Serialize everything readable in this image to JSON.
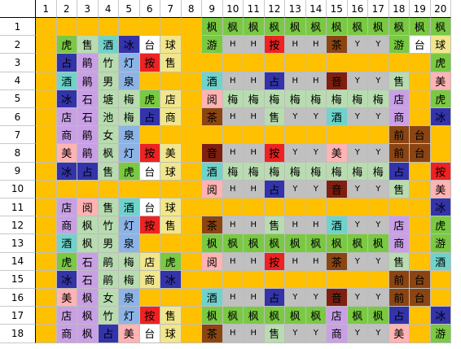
{
  "colors": {
    "O": "#ffc000",
    "W": "#ffffff",
    "G": "#7ac943",
    "B": "#3333aa",
    "C": "#6fd3cc",
    "L": "#c9a0e6",
    "R": "#ee2222",
    "N": "#8b4513",
    "D": "#7f1f0f",
    "S": "#c0c0c0",
    "P": "#ffb3b3",
    "Y": "#f2e68c",
    "K": "#b8dcb0",
    "M": "#8cb4e6",
    "A": "#e0e0e0"
  },
  "column_headers": [
    "1",
    "2",
    "3",
    "4",
    "5",
    "6",
    "7",
    "8",
    "9",
    "10",
    "11",
    "12",
    "13",
    "14",
    "15",
    "16",
    "17",
    "18",
    "19",
    "20"
  ],
  "rows": [
    {
      "label": "1",
      "cells": [
        [
          "",
          "O"
        ],
        [
          "",
          "O"
        ],
        [
          "",
          "O"
        ],
        [
          "",
          "O"
        ],
        [
          "",
          "O"
        ],
        [
          "",
          "O"
        ],
        [
          "",
          "O"
        ],
        [
          "",
          "O"
        ],
        [
          "枫",
          "G"
        ],
        [
          "枫",
          "G"
        ],
        [
          "枫",
          "G"
        ],
        [
          "枫",
          "G"
        ],
        [
          "枫",
          "G"
        ],
        [
          "枫",
          "G"
        ],
        [
          "枫",
          "G"
        ],
        [
          "枫",
          "G"
        ],
        [
          "枫",
          "G"
        ],
        [
          "枫",
          "G"
        ],
        [
          "枫",
          "G"
        ],
        [
          "枫",
          "G"
        ]
      ]
    },
    {
      "label": "2",
      "cells": [
        [
          "",
          "O"
        ],
        [
          "虎",
          "G"
        ],
        [
          "售",
          "K"
        ],
        [
          "酒",
          "C"
        ],
        [
          "冰",
          "B"
        ],
        [
          "台",
          "W"
        ],
        [
          "球",
          "Y"
        ],
        [
          "",
          "O"
        ],
        [
          "游",
          "G"
        ],
        [
          "H",
          "S"
        ],
        [
          "H",
          "S"
        ],
        [
          "按",
          "R"
        ],
        [
          "H",
          "S"
        ],
        [
          "H",
          "S"
        ],
        [
          "茶",
          "N"
        ],
        [
          "Y",
          "S"
        ],
        [
          "Y",
          "S"
        ],
        [
          "游",
          "G"
        ],
        [
          "台",
          "W"
        ],
        [
          "球",
          "Y"
        ]
      ]
    },
    {
      "label": "3",
      "cells": [
        [
          "",
          "O"
        ],
        [
          "占",
          "B"
        ],
        [
          "鹃",
          "L"
        ],
        [
          "竹",
          "K"
        ],
        [
          "灯",
          "M"
        ],
        [
          "按",
          "R"
        ],
        [
          "售",
          "Y"
        ],
        [
          "",
          "O"
        ],
        [
          "",
          "O"
        ],
        [
          "",
          "O"
        ],
        [
          "",
          "O"
        ],
        [
          "",
          "O"
        ],
        [
          "",
          "O"
        ],
        [
          "",
          "O"
        ],
        [
          "",
          "O"
        ],
        [
          "",
          "O"
        ],
        [
          "",
          "O"
        ],
        [
          "",
          "O"
        ],
        [
          "",
          "O"
        ],
        [
          "虎",
          "G"
        ]
      ]
    },
    {
      "label": "4",
      "cells": [
        [
          "",
          "O"
        ],
        [
          "酒",
          "C"
        ],
        [
          "鹃",
          "L"
        ],
        [
          "男",
          "K"
        ],
        [
          "泉",
          "M"
        ],
        [
          "",
          "O"
        ],
        [
          "",
          "O"
        ],
        [
          "",
          "O"
        ],
        [
          "酒",
          "C"
        ],
        [
          "H",
          "S"
        ],
        [
          "H",
          "S"
        ],
        [
          "占",
          "B"
        ],
        [
          "H",
          "S"
        ],
        [
          "H",
          "S"
        ],
        [
          "音",
          "D"
        ],
        [
          "Y",
          "S"
        ],
        [
          "Y",
          "S"
        ],
        [
          "售",
          "K"
        ],
        [
          "",
          "O"
        ],
        [
          "美",
          "P"
        ]
      ]
    },
    {
      "label": "5",
      "cells": [
        [
          "",
          "O"
        ],
        [
          "冰",
          "B"
        ],
        [
          "石",
          "L"
        ],
        [
          "塘",
          "K"
        ],
        [
          "梅",
          "K"
        ],
        [
          "虎",
          "G"
        ],
        [
          "店",
          "Y"
        ],
        [
          "",
          "O"
        ],
        [
          "阅",
          "P"
        ],
        [
          "梅",
          "K"
        ],
        [
          "梅",
          "K"
        ],
        [
          "梅",
          "K"
        ],
        [
          "梅",
          "K"
        ],
        [
          "梅",
          "K"
        ],
        [
          "梅",
          "K"
        ],
        [
          "梅",
          "K"
        ],
        [
          "梅",
          "K"
        ],
        [
          "店",
          "L"
        ],
        [
          "",
          "O"
        ],
        [
          "虎",
          "G"
        ]
      ]
    },
    {
      "label": "6",
      "cells": [
        [
          "",
          "O"
        ],
        [
          "店",
          "L"
        ],
        [
          "石",
          "L"
        ],
        [
          "池",
          "K"
        ],
        [
          "梅",
          "K"
        ],
        [
          "占",
          "B"
        ],
        [
          "商",
          "Y"
        ],
        [
          "",
          "O"
        ],
        [
          "茶",
          "N"
        ],
        [
          "H",
          "S"
        ],
        [
          "H",
          "S"
        ],
        [
          "售",
          "K"
        ],
        [
          "Y",
          "S"
        ],
        [
          "Y",
          "S"
        ],
        [
          "酒",
          "C"
        ],
        [
          "Y",
          "S"
        ],
        [
          "Y",
          "S"
        ],
        [
          "商",
          "L"
        ],
        [
          "",
          "O"
        ],
        [
          "冰",
          "B"
        ]
      ]
    },
    {
      "label": "7",
      "cells": [
        [
          "",
          "O"
        ],
        [
          "商",
          "L"
        ],
        [
          "鹃",
          "L"
        ],
        [
          "女",
          "K"
        ],
        [
          "泉",
          "M"
        ],
        [
          "",
          "O"
        ],
        [
          "",
          "O"
        ],
        [
          "",
          "O"
        ],
        [
          "",
          "O"
        ],
        [
          "",
          "O"
        ],
        [
          "",
          "O"
        ],
        [
          "",
          "O"
        ],
        [
          "",
          "O"
        ],
        [
          "",
          "O"
        ],
        [
          "",
          "O"
        ],
        [
          "",
          "O"
        ],
        [
          "",
          "O"
        ],
        [
          "前",
          "N"
        ],
        [
          "台",
          "N"
        ],
        [
          "",
          "O"
        ]
      ]
    },
    {
      "label": "8",
      "cells": [
        [
          "",
          "O"
        ],
        [
          "美",
          "P"
        ],
        [
          "鹃",
          "L"
        ],
        [
          "枫",
          "K"
        ],
        [
          "灯",
          "M"
        ],
        [
          "按",
          "R"
        ],
        [
          "美",
          "Y"
        ],
        [
          "",
          "O"
        ],
        [
          "音",
          "D"
        ],
        [
          "H",
          "S"
        ],
        [
          "H",
          "S"
        ],
        [
          "按",
          "R"
        ],
        [
          "Y",
          "S"
        ],
        [
          "Y",
          "S"
        ],
        [
          "美",
          "P"
        ],
        [
          "Y",
          "S"
        ],
        [
          "Y",
          "S"
        ],
        [
          "前",
          "N"
        ],
        [
          "台",
          "N"
        ],
        [
          "",
          "O"
        ]
      ]
    },
    {
      "label": "9",
      "cells": [
        [
          "",
          "O"
        ],
        [
          "冰",
          "B"
        ],
        [
          "占",
          "B"
        ],
        [
          "售",
          "K"
        ],
        [
          "虎",
          "G"
        ],
        [
          "台",
          "W"
        ],
        [
          "球",
          "Y"
        ],
        [
          "",
          "O"
        ],
        [
          "酒",
          "C"
        ],
        [
          "梅",
          "K"
        ],
        [
          "梅",
          "K"
        ],
        [
          "梅",
          "K"
        ],
        [
          "梅",
          "K"
        ],
        [
          "梅",
          "K"
        ],
        [
          "梅",
          "K"
        ],
        [
          "梅",
          "K"
        ],
        [
          "梅",
          "K"
        ],
        [
          "占",
          "B"
        ],
        [
          "",
          "O"
        ],
        [
          "按",
          "R"
        ]
      ]
    },
    {
      "label": "10",
      "cells": [
        [
          "",
          "O"
        ],
        [
          "",
          "O"
        ],
        [
          "",
          "O"
        ],
        [
          "",
          "O"
        ],
        [
          "",
          "O"
        ],
        [
          "",
          "O"
        ],
        [
          "",
          "O"
        ],
        [
          "",
          "O"
        ],
        [
          "阅",
          "P"
        ],
        [
          "H",
          "S"
        ],
        [
          "H",
          "S"
        ],
        [
          "占",
          "B"
        ],
        [
          "Y",
          "S"
        ],
        [
          "Y",
          "S"
        ],
        [
          "音",
          "D"
        ],
        [
          "Y",
          "S"
        ],
        [
          "Y",
          "S"
        ],
        [
          "售",
          "K"
        ],
        [
          "",
          "O"
        ],
        [
          "美",
          "P"
        ]
      ]
    },
    {
      "label": "11",
      "cells": [
        [
          "",
          "O"
        ],
        [
          "店",
          "L"
        ],
        [
          "阅",
          "P"
        ],
        [
          "售",
          "K"
        ],
        [
          "酒",
          "C"
        ],
        [
          "台",
          "W"
        ],
        [
          "球",
          "Y"
        ],
        [
          "",
          "O"
        ],
        [
          "",
          "O"
        ],
        [
          "",
          "O"
        ],
        [
          "",
          "O"
        ],
        [
          "",
          "O"
        ],
        [
          "",
          "O"
        ],
        [
          "",
          "O"
        ],
        [
          "",
          "O"
        ],
        [
          "",
          "O"
        ],
        [
          "",
          "O"
        ],
        [
          "",
          "O"
        ],
        [
          "",
          "O"
        ],
        [
          "冰",
          "B"
        ]
      ]
    },
    {
      "label": "12",
      "cells": [
        [
          "",
          "O"
        ],
        [
          "商",
          "L"
        ],
        [
          "枫",
          "K"
        ],
        [
          "竹",
          "K"
        ],
        [
          "灯",
          "M"
        ],
        [
          "按",
          "R"
        ],
        [
          "售",
          "Y"
        ],
        [
          "",
          "O"
        ],
        [
          "茶",
          "N"
        ],
        [
          "H",
          "S"
        ],
        [
          "H",
          "S"
        ],
        [
          "售",
          "K"
        ],
        [
          "H",
          "S"
        ],
        [
          "H",
          "S"
        ],
        [
          "酒",
          "C"
        ],
        [
          "Y",
          "S"
        ],
        [
          "Y",
          "S"
        ],
        [
          "店",
          "L"
        ],
        [
          "",
          "O"
        ],
        [
          "虎",
          "G"
        ]
      ]
    },
    {
      "label": "13",
      "cells": [
        [
          "",
          "O"
        ],
        [
          "酒",
          "C"
        ],
        [
          "枫",
          "K"
        ],
        [
          "男",
          "K"
        ],
        [
          "泉",
          "M"
        ],
        [
          "",
          "O"
        ],
        [
          "",
          "O"
        ],
        [
          "",
          "O"
        ],
        [
          "枫",
          "G"
        ],
        [
          "枫",
          "G"
        ],
        [
          "枫",
          "G"
        ],
        [
          "枫",
          "G"
        ],
        [
          "枫",
          "G"
        ],
        [
          "枫",
          "G"
        ],
        [
          "枫",
          "G"
        ],
        [
          "枫",
          "G"
        ],
        [
          "枫",
          "G"
        ],
        [
          "商",
          "L"
        ],
        [
          "",
          "O"
        ],
        [
          "游",
          "G"
        ]
      ]
    },
    {
      "label": "14",
      "cells": [
        [
          "",
          "O"
        ],
        [
          "虎",
          "G"
        ],
        [
          "石",
          "L"
        ],
        [
          "鹃",
          "K"
        ],
        [
          "梅",
          "K"
        ],
        [
          "店",
          "Y"
        ],
        [
          "虎",
          "G"
        ],
        [
          "",
          "O"
        ],
        [
          "阅",
          "P"
        ],
        [
          "H",
          "S"
        ],
        [
          "H",
          "S"
        ],
        [
          "按",
          "R"
        ],
        [
          "H",
          "S"
        ],
        [
          "H",
          "S"
        ],
        [
          "茶",
          "N"
        ],
        [
          "Y",
          "S"
        ],
        [
          "Y",
          "S"
        ],
        [
          "售",
          "K"
        ],
        [
          "",
          "O"
        ],
        [
          "酒",
          "C"
        ]
      ]
    },
    {
      "label": "15",
      "cells": [
        [
          "",
          "O"
        ],
        [
          "冰",
          "B"
        ],
        [
          "石",
          "L"
        ],
        [
          "鹃",
          "K"
        ],
        [
          "梅",
          "K"
        ],
        [
          "商",
          "Y"
        ],
        [
          "冰",
          "B"
        ],
        [
          "",
          "O"
        ],
        [
          "",
          "O"
        ],
        [
          "",
          "O"
        ],
        [
          "",
          "O"
        ],
        [
          "",
          "O"
        ],
        [
          "",
          "O"
        ],
        [
          "",
          "O"
        ],
        [
          "",
          "O"
        ],
        [
          "",
          "O"
        ],
        [
          "",
          "O"
        ],
        [
          "前",
          "N"
        ],
        [
          "台",
          "N"
        ],
        [
          "",
          "O"
        ]
      ]
    },
    {
      "label": "16",
      "cells": [
        [
          "",
          "O"
        ],
        [
          "美",
          "P"
        ],
        [
          "枫",
          "L"
        ],
        [
          "女",
          "K"
        ],
        [
          "泉",
          "M"
        ],
        [
          "",
          "O"
        ],
        [
          "",
          "O"
        ],
        [
          "",
          "O"
        ],
        [
          "酒",
          "C"
        ],
        [
          "H",
          "S"
        ],
        [
          "H",
          "S"
        ],
        [
          "占",
          "B"
        ],
        [
          "Y",
          "S"
        ],
        [
          "Y",
          "S"
        ],
        [
          "音",
          "D"
        ],
        [
          "Y",
          "S"
        ],
        [
          "Y",
          "S"
        ],
        [
          "前",
          "N"
        ],
        [
          "台",
          "N"
        ],
        [
          "",
          "O"
        ]
      ]
    },
    {
      "label": "17",
      "cells": [
        [
          "",
          "O"
        ],
        [
          "店",
          "L"
        ],
        [
          "枫",
          "L"
        ],
        [
          "竹",
          "K"
        ],
        [
          "灯",
          "M"
        ],
        [
          "按",
          "R"
        ],
        [
          "售",
          "Y"
        ],
        [
          "",
          "O"
        ],
        [
          "枫",
          "G"
        ],
        [
          "枫",
          "G"
        ],
        [
          "枫",
          "G"
        ],
        [
          "枫",
          "G"
        ],
        [
          "枫",
          "G"
        ],
        [
          "枫",
          "G"
        ],
        [
          "店",
          "L"
        ],
        [
          "枫",
          "G"
        ],
        [
          "枫",
          "G"
        ],
        [
          "占",
          "B"
        ],
        [
          "",
          "O"
        ],
        [
          "冰",
          "B"
        ]
      ]
    },
    {
      "label": "18",
      "cells": [
        [
          "",
          "O"
        ],
        [
          "商",
          "L"
        ],
        [
          "枫",
          "L"
        ],
        [
          "占",
          "B"
        ],
        [
          "美",
          "P"
        ],
        [
          "台",
          "W"
        ],
        [
          "球",
          "Y"
        ],
        [
          "",
          "O"
        ],
        [
          "茶",
          "N"
        ],
        [
          "H",
          "S"
        ],
        [
          "H",
          "S"
        ],
        [
          "售",
          "K"
        ],
        [
          "Y",
          "S"
        ],
        [
          "Y",
          "S"
        ],
        [
          "商",
          "L"
        ],
        [
          "Y",
          "S"
        ],
        [
          "Y",
          "S"
        ],
        [
          "美",
          "P"
        ],
        [
          "",
          "O"
        ],
        [
          "游",
          "G"
        ]
      ]
    }
  ]
}
